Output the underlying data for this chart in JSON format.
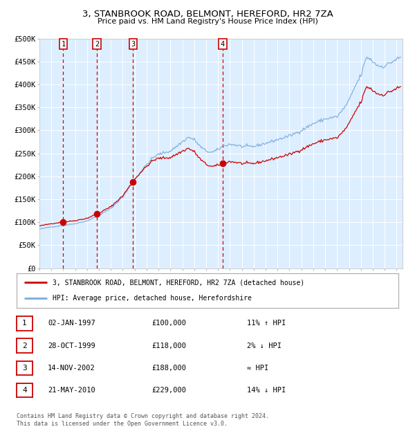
{
  "title1": "3, STANBROOK ROAD, BELMONT, HEREFORD, HR2 7ZA",
  "title2": "Price paid vs. HM Land Registry's House Price Index (HPI)",
  "legend_line1": "3, STANBROOK ROAD, BELMONT, HEREFORD, HR2 7ZA (detached house)",
  "legend_line2": "HPI: Average price, detached house, Herefordshire",
  "footer": "Contains HM Land Registry data © Crown copyright and database right 2024.\nThis data is licensed under the Open Government Licence v3.0.",
  "sales": [
    {
      "num": 1,
      "date_f": 1997.003,
      "price": 100000,
      "label": "02-JAN-1997",
      "price_str": "£100,000",
      "hpi_note": "11% ↑ HPI"
    },
    {
      "num": 2,
      "date_f": 1999.82,
      "price": 118000,
      "label": "28-OCT-1999",
      "price_str": "£118,000",
      "hpi_note": "2% ↓ HPI"
    },
    {
      "num": 3,
      "date_f": 2002.869,
      "price": 188000,
      "label": "14-NOV-2002",
      "price_str": "£188,000",
      "hpi_note": "≈ HPI"
    },
    {
      "num": 4,
      "date_f": 2010.384,
      "price": 229000,
      "label": "21-MAY-2010",
      "price_str": "£229,000",
      "hpi_note": "14% ↓ HPI"
    }
  ],
  "hpi_color": "#7aaadd",
  "price_color": "#cc0000",
  "sale_dot_color": "#cc0000",
  "vline_color": "#cc0000",
  "plot_bg": "#ddeeff",
  "grid_color": "#ffffff",
  "yticks": [
    0,
    50000,
    100000,
    150000,
    200000,
    250000,
    300000,
    350000,
    400000,
    450000,
    500000
  ],
  "xstart": 1995.0,
  "xend": 2025.5
}
